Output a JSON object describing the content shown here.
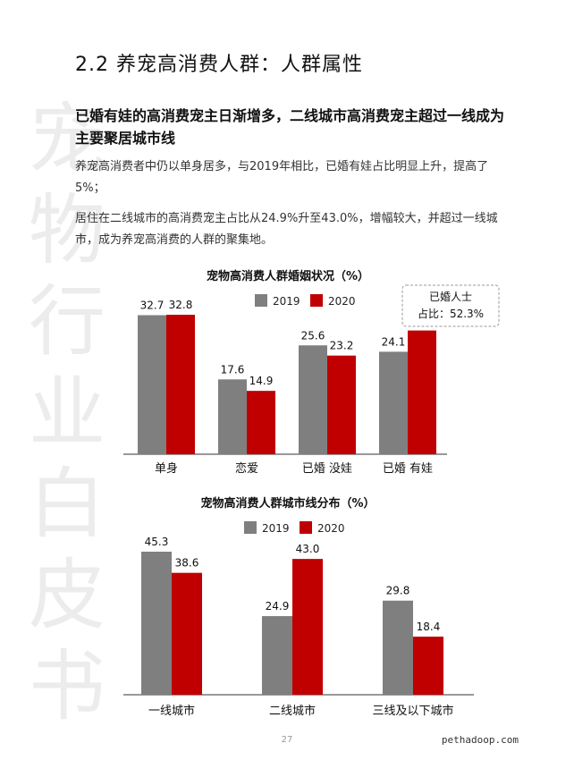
{
  "watermark": [
    "宠",
    "物",
    "行",
    "业",
    "白",
    "皮",
    "书"
  ],
  "section_title": "2.2 养宠高消费人群：人群属性",
  "headline": "已婚有娃的高消费宠主日渐增多，二线城市高消费宠主超过一线成为主要聚居城市线",
  "paragraphs": [
    "养宠高消费者中仍以单身居多，与2019年相比，已婚有娃占比明显上升，提高了5%；",
    "居住在二线城市的高消费宠主占比从24.9%升至43.0%，增幅较大，并超过一线城市，成为养宠高消费的人群的聚集地。"
  ],
  "colors": {
    "y2019": "#7f7f7f",
    "y2020": "#c00000"
  },
  "chart_data": [
    {
      "type": "bar",
      "title": "宠物高消费人群婚姻状况（%）",
      "categories": [
        "单身",
        "恋爱",
        "已婚 没娃",
        "已婚 有娃"
      ],
      "series": [
        {
          "name": "2019",
          "values": [
            32.7,
            17.6,
            25.6,
            24.1
          ]
        },
        {
          "name": "2020",
          "values": [
            32.8,
            14.9,
            23.2,
            29.1
          ]
        }
      ],
      "ylim": [
        0,
        35
      ],
      "legend": "top",
      "grid": false,
      "annotation": [
        "已婚人士",
        "占比：52.3%"
      ]
    },
    {
      "type": "bar",
      "title": "宠物高消费人群城市线分布（%）",
      "categories": [
        "一线城市",
        "二线城市",
        "三线及以下城市"
      ],
      "series": [
        {
          "name": "2019",
          "values": [
            45.3,
            24.9,
            29.8
          ]
        },
        {
          "name": "2020",
          "values": [
            38.6,
            43.0,
            18.4
          ]
        }
      ],
      "ylim": [
        0,
        48
      ],
      "legend": "top",
      "grid": false
    }
  ],
  "footer": {
    "page": "27",
    "site": "pethadoop.com"
  }
}
